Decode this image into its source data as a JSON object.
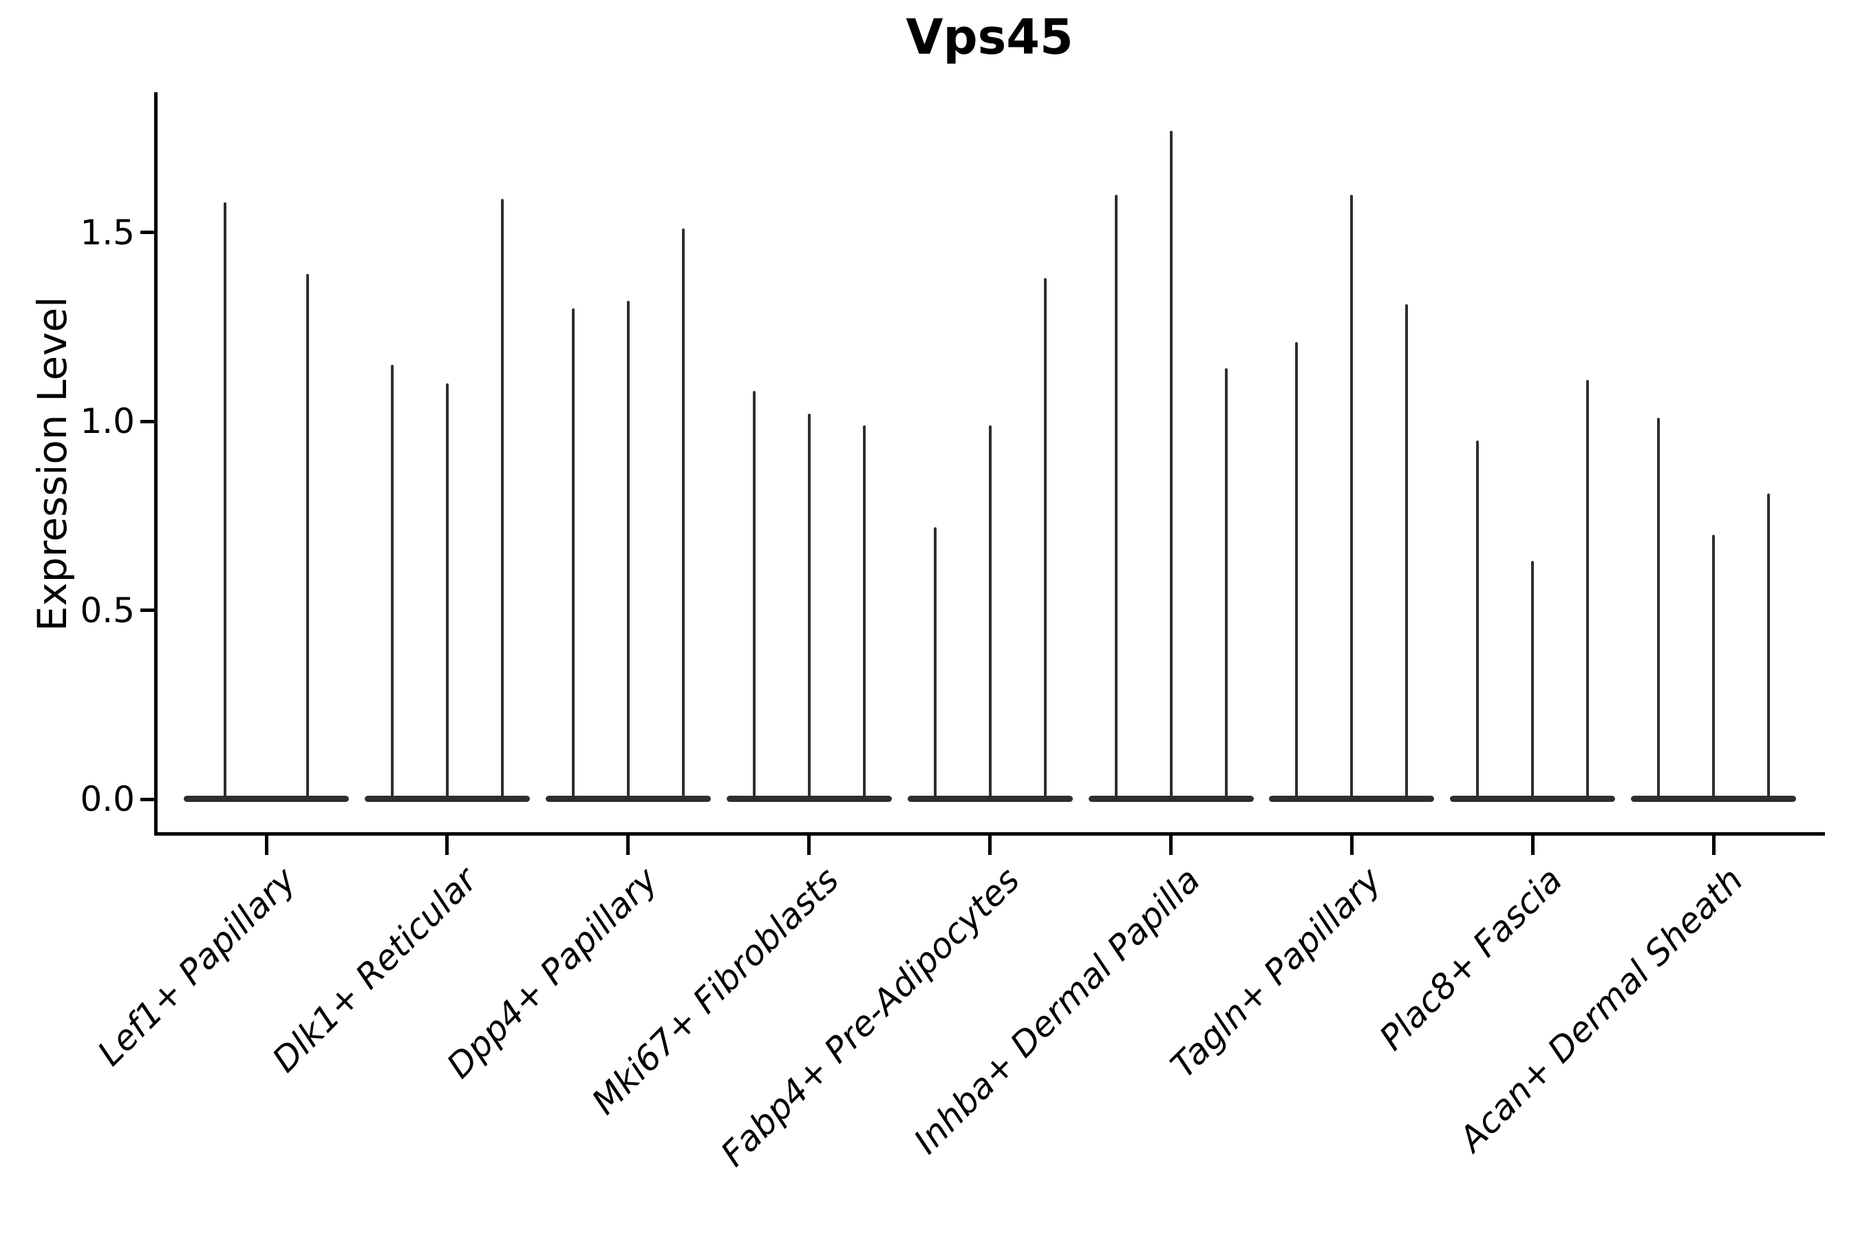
{
  "chart_data": {
    "type": "violin",
    "title": "Vps45",
    "ylabel": "Expression Level",
    "xlabel": "",
    "yticks": [
      0.0,
      0.5,
      1.0,
      1.5
    ],
    "ylim": [
      -0.09,
      1.88
    ],
    "grid": false,
    "legend": false,
    "x_tick_rotation_deg": 45,
    "violin_style": "zero-inflated distributions: wide flat base at expression 0 with a thin vertical spike reaching the maximum expression value; 2-3 violins per cell-type group",
    "colors": {
      "violin": "#2e2e2e",
      "axis": "#000000",
      "text": "#000000",
      "background": "#ffffff"
    },
    "categories": [
      "Lef1+ Papillary",
      "Dlk1+ Reticular",
      "Dpp4+ Papillary",
      "Mki67+ Fibroblasts",
      "Fabp4+ Pre-Adipocytes",
      "Inhba+ Dermal Papilla",
      "Tagln+ Papillary",
      "Plac8+ Fascia",
      "Acan+ Dermal Sheath"
    ],
    "groups": [
      {
        "label": "Lef1+ Papillary",
        "violin_maxima": [
          1.58,
          1.39
        ]
      },
      {
        "label": "Dlk1+ Reticular",
        "violin_maxima": [
          1.15,
          1.1,
          1.59
        ]
      },
      {
        "label": "Dpp4+ Papillary",
        "violin_maxima": [
          1.3,
          1.32,
          1.51
        ]
      },
      {
        "label": "Mki67+ Fibroblasts",
        "violin_maxima": [
          1.08,
          1.02,
          0.99
        ]
      },
      {
        "label": "Fabp4+ Pre-Adipocytes",
        "violin_maxima": [
          0.72,
          0.99,
          1.38
        ]
      },
      {
        "label": "Inhba+ Dermal Papilla",
        "violin_maxima": [
          1.6,
          1.77,
          1.14
        ]
      },
      {
        "label": "Tagln+ Papillary",
        "violin_maxima": [
          1.21,
          1.6,
          1.31
        ]
      },
      {
        "label": "Plac8+ Fascia",
        "violin_maxima": [
          0.95,
          0.63,
          1.11
        ]
      },
      {
        "label": "Acan+ Dermal Sheath",
        "violin_maxima": [
          1.01,
          0.7,
          0.81
        ]
      }
    ]
  }
}
